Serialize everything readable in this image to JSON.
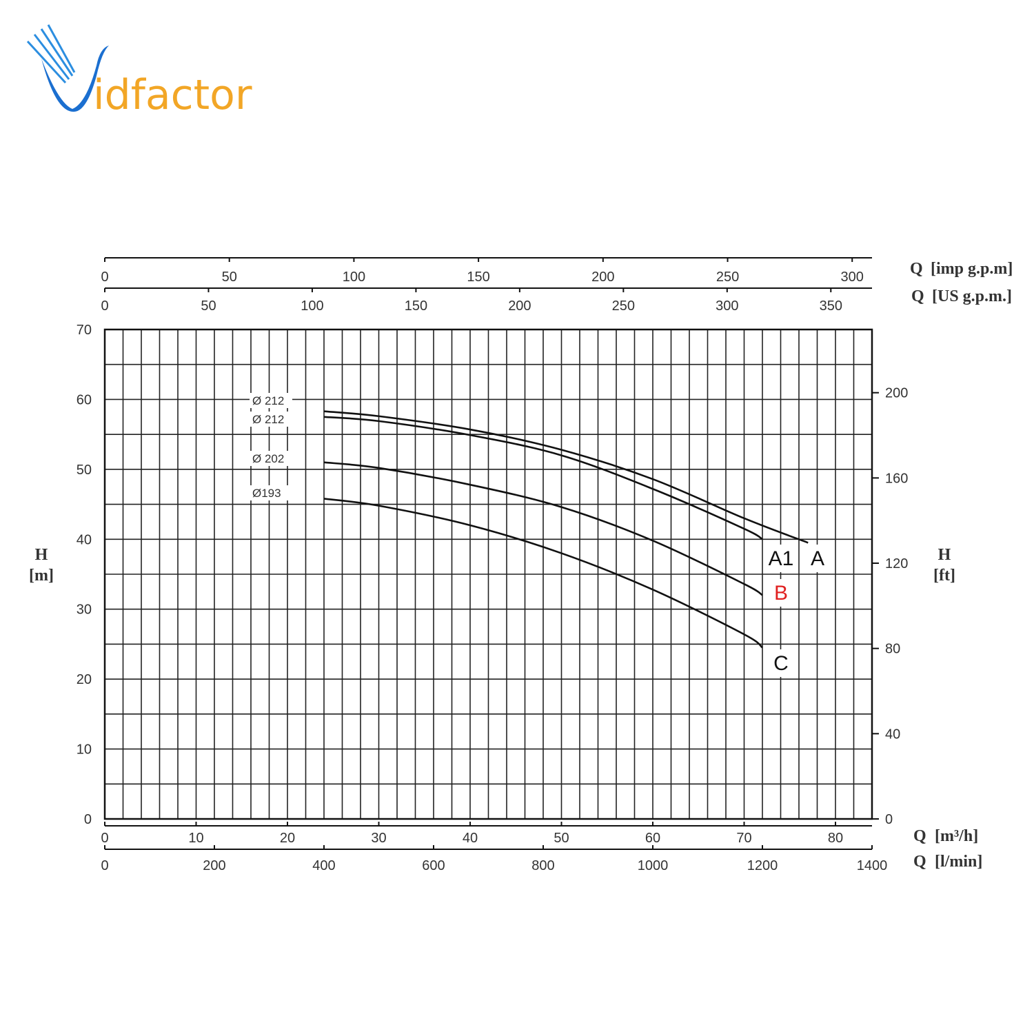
{
  "brand": {
    "logo_text": "Vidfactor",
    "colors": {
      "blue": "#1b6fd0",
      "orange": "#f2a626"
    }
  },
  "chart_data": {
    "type": "line",
    "x_axes": {
      "primary": {
        "label": "Q [m³/h]",
        "label_q": "Q",
        "label_unit": "[m³/h]",
        "range": [
          0,
          84
        ],
        "ticks": [
          0,
          10,
          20,
          30,
          40,
          50,
          60,
          70,
          80
        ]
      },
      "l_min": {
        "label_q": "Q",
        "label_unit": "[l/min]",
        "range": [
          0,
          1400
        ],
        "ticks": [
          0,
          200,
          400,
          600,
          800,
          1000,
          1200,
          1400
        ]
      },
      "imp_gpm": {
        "label_q": "Q",
        "label_unit": "[imp g.p.m]",
        "ticks": [
          0,
          50,
          100,
          150,
          200,
          250,
          300
        ]
      },
      "us_gpm": {
        "label_q": "Q",
        "label_unit": "[US g.p.m.]",
        "ticks": [
          0,
          50,
          100,
          150,
          200,
          250,
          300,
          350
        ]
      }
    },
    "y_axes": {
      "left": {
        "label_h": "H",
        "label_unit": "[m]",
        "range": [
          0,
          70
        ],
        "ticks": [
          0,
          10,
          20,
          30,
          40,
          50,
          60,
          70
        ]
      },
      "right": {
        "label_h": "H",
        "label_unit": "[ft]",
        "ticks": [
          0,
          40,
          80,
          120,
          160,
          200
        ]
      }
    },
    "grid": true,
    "diameter_labels": [
      "Ø 212",
      "Ø 212",
      "Ø 202",
      "Ø193"
    ],
    "series": [
      {
        "name": "A",
        "color": "#000000",
        "x": [
          24,
          30,
          40,
          50,
          60,
          70,
          77
        ],
        "y": [
          58.3,
          57.6,
          55.7,
          52.8,
          48.6,
          43.0,
          39.5
        ]
      },
      {
        "name": "A1",
        "color": "#000000",
        "x": [
          24,
          30,
          40,
          50,
          60,
          70,
          72
        ],
        "y": [
          57.5,
          56.9,
          54.9,
          52.0,
          47.2,
          41.5,
          40.0
        ]
      },
      {
        "name": "B",
        "color": "#e02020",
        "x": [
          24,
          30,
          40,
          50,
          60,
          70,
          72
        ],
        "y": [
          51.0,
          50.2,
          47.8,
          44.6,
          39.8,
          33.6,
          32.0
        ]
      },
      {
        "name": "C",
        "color": "#000000",
        "x": [
          24,
          30,
          40,
          50,
          60,
          70,
          72
        ],
        "y": [
          45.8,
          44.8,
          42.0,
          38.0,
          32.8,
          26.4,
          24.5
        ]
      }
    ],
    "curve_labels": {
      "A": "A",
      "A1": "A1",
      "B": "B",
      "C": "C"
    }
  }
}
